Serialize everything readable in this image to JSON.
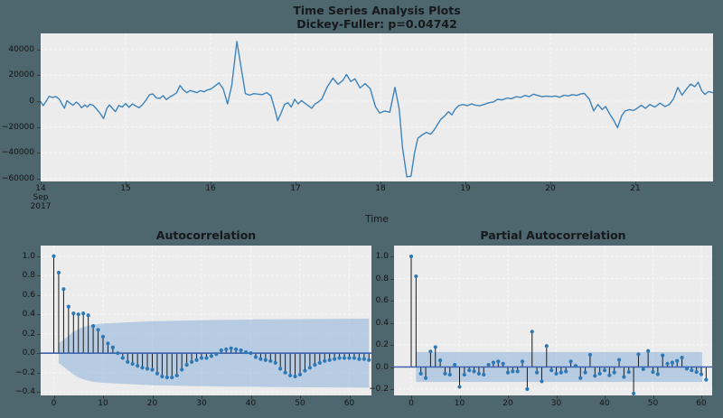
{
  "page": {
    "background": "#4e666e",
    "axes_background": "#ececec",
    "grid_color": "#f7f7f7",
    "text_color": "#141414"
  },
  "colors": {
    "line": "#3d84bd",
    "marker": "#2e79b5",
    "stem": "#1a1a1a",
    "zero_line": "#3e63ae",
    "band": "rgba(125,170,215,0.48)"
  },
  "chart_data": [
    {
      "type": "line",
      "name": "time-series",
      "title": "Time Series Analysis Plots",
      "subtitle": "Dickey-Fuller: p=0.04742",
      "xlabel": "Time",
      "x_tick_labels": [
        "14",
        "15",
        "16",
        "17",
        "18",
        "19",
        "20",
        "21"
      ],
      "x_first_tick_extra": [
        "Sep",
        "2017"
      ],
      "y_tick_labels": [
        "40000",
        "20000",
        "0",
        "−20000",
        "−40000",
        "−60000"
      ],
      "y_tick_values": [
        40000,
        20000,
        0,
        -20000,
        -40000,
        -60000
      ],
      "ylim": [
        -62000,
        52500
      ],
      "xlim_days": [
        0,
        7.91
      ],
      "grid": true,
      "points": [
        [
          0.0,
          -500
        ],
        [
          0.03,
          -3500
        ],
        [
          0.07,
          500
        ],
        [
          0.1,
          3800
        ],
        [
          0.14,
          2800
        ],
        [
          0.18,
          3600
        ],
        [
          0.22,
          1500
        ],
        [
          0.25,
          -2200
        ],
        [
          0.28,
          -5500
        ],
        [
          0.31,
          300
        ],
        [
          0.35,
          -1800
        ],
        [
          0.38,
          -3200
        ],
        [
          0.42,
          -800
        ],
        [
          0.45,
          -2400
        ],
        [
          0.48,
          -5200
        ],
        [
          0.52,
          -3000
        ],
        [
          0.55,
          -4600
        ],
        [
          0.58,
          -2400
        ],
        [
          0.62,
          -3400
        ],
        [
          0.66,
          -6200
        ],
        [
          0.7,
          -9500
        ],
        [
          0.74,
          -13500
        ],
        [
          0.78,
          -5500
        ],
        [
          0.81,
          -3000
        ],
        [
          0.85,
          -6000
        ],
        [
          0.88,
          -8200
        ],
        [
          0.92,
          -3400
        ],
        [
          0.96,
          -4600
        ],
        [
          1.0,
          -1800
        ],
        [
          1.04,
          -4800
        ],
        [
          1.08,
          -2200
        ],
        [
          1.12,
          -3800
        ],
        [
          1.16,
          -5200
        ],
        [
          1.2,
          -2600
        ],
        [
          1.24,
          800
        ],
        [
          1.28,
          4800
        ],
        [
          1.32,
          5600
        ],
        [
          1.36,
          2600
        ],
        [
          1.4,
          2000
        ],
        [
          1.44,
          4200
        ],
        [
          1.48,
          1200
        ],
        [
          1.52,
          3200
        ],
        [
          1.56,
          4600
        ],
        [
          1.6,
          6400
        ],
        [
          1.64,
          12200
        ],
        [
          1.68,
          8600
        ],
        [
          1.72,
          6600
        ],
        [
          1.76,
          8200
        ],
        [
          1.8,
          7400
        ],
        [
          1.84,
          6600
        ],
        [
          1.88,
          8200
        ],
        [
          1.92,
          7200
        ],
        [
          1.96,
          8600
        ],
        [
          2.0,
          9200
        ],
        [
          2.05,
          11600
        ],
        [
          2.1,
          14200
        ],
        [
          2.15,
          9200
        ],
        [
          2.2,
          -2200
        ],
        [
          2.25,
          12500
        ],
        [
          2.31,
          46200
        ],
        [
          2.36,
          26000
        ],
        [
          2.41,
          5800
        ],
        [
          2.46,
          4600
        ],
        [
          2.51,
          5800
        ],
        [
          2.56,
          5400
        ],
        [
          2.61,
          5000
        ],
        [
          2.66,
          6600
        ],
        [
          2.71,
          4200
        ],
        [
          2.75,
          -4800
        ],
        [
          2.79,
          -15200
        ],
        [
          2.83,
          -9200
        ],
        [
          2.87,
          -2600
        ],
        [
          2.91,
          -1200
        ],
        [
          2.95,
          -4600
        ],
        [
          2.99,
          1400
        ],
        [
          3.03,
          -2200
        ],
        [
          3.07,
          400
        ],
        [
          3.11,
          -1600
        ],
        [
          3.15,
          -3600
        ],
        [
          3.19,
          -5600
        ],
        [
          3.23,
          -2200
        ],
        [
          3.27,
          -600
        ],
        [
          3.31,
          1600
        ],
        [
          3.37,
          10600
        ],
        [
          3.44,
          17800
        ],
        [
          3.5,
          13000
        ],
        [
          3.56,
          16200
        ],
        [
          3.6,
          20600
        ],
        [
          3.65,
          15200
        ],
        [
          3.7,
          17200
        ],
        [
          3.76,
          10200
        ],
        [
          3.82,
          13600
        ],
        [
          3.88,
          9600
        ],
        [
          3.94,
          -4200
        ],
        [
          3.99,
          -9200
        ],
        [
          4.05,
          -7600
        ],
        [
          4.11,
          -8600
        ],
        [
          4.17,
          10600
        ],
        [
          4.22,
          -6000
        ],
        [
          4.26,
          -36000
        ],
        [
          4.31,
          -58600
        ],
        [
          4.36,
          -58200
        ],
        [
          4.4,
          -40500
        ],
        [
          4.44,
          -28600
        ],
        [
          4.49,
          -26200
        ],
        [
          4.54,
          -24200
        ],
        [
          4.59,
          -25600
        ],
        [
          4.63,
          -22600
        ],
        [
          4.67,
          -18200
        ],
        [
          4.71,
          -14200
        ],
        [
          4.76,
          -11200
        ],
        [
          4.8,
          -8200
        ],
        [
          4.84,
          -10600
        ],
        [
          4.88,
          -6200
        ],
        [
          4.92,
          -3600
        ],
        [
          4.97,
          -2600
        ],
        [
          5.02,
          -3600
        ],
        [
          5.07,
          -2200
        ],
        [
          5.12,
          -3200
        ],
        [
          5.17,
          -3600
        ],
        [
          5.22,
          -2600
        ],
        [
          5.28,
          -1200
        ],
        [
          5.33,
          -600
        ],
        [
          5.38,
          1400
        ],
        [
          5.43,
          900
        ],
        [
          5.49,
          2400
        ],
        [
          5.54,
          1900
        ],
        [
          5.6,
          3400
        ],
        [
          5.65,
          2900
        ],
        [
          5.7,
          4400
        ],
        [
          5.75,
          3400
        ],
        [
          5.8,
          5400
        ],
        [
          5.85,
          4400
        ],
        [
          5.9,
          3400
        ],
        [
          5.95,
          3900
        ],
        [
          6.01,
          3400
        ],
        [
          6.06,
          4000
        ],
        [
          6.11,
          3000
        ],
        [
          6.16,
          4600
        ],
        [
          6.21,
          4000
        ],
        [
          6.26,
          5000
        ],
        [
          6.31,
          4400
        ],
        [
          6.36,
          5600
        ],
        [
          6.4,
          6000
        ],
        [
          6.46,
          1400
        ],
        [
          6.51,
          -7600
        ],
        [
          6.56,
          -2600
        ],
        [
          6.61,
          -6600
        ],
        [
          6.65,
          -4200
        ],
        [
          6.7,
          -10200
        ],
        [
          6.74,
          -14200
        ],
        [
          6.79,
          -20600
        ],
        [
          6.84,
          -11200
        ],
        [
          6.88,
          -7600
        ],
        [
          6.93,
          -6600
        ],
        [
          6.98,
          -7200
        ],
        [
          7.02,
          -5600
        ],
        [
          7.07,
          -3200
        ],
        [
          7.12,
          -5600
        ],
        [
          7.17,
          -2600
        ],
        [
          7.23,
          -4600
        ],
        [
          7.29,
          -1600
        ],
        [
          7.35,
          -4200
        ],
        [
          7.4,
          -2600
        ],
        [
          7.45,
          1800
        ],
        [
          7.5,
          10600
        ],
        [
          7.55,
          4600
        ],
        [
          7.6,
          9200
        ],
        [
          7.65,
          13200
        ],
        [
          7.7,
          11200
        ],
        [
          7.74,
          14600
        ],
        [
          7.78,
          8200
        ],
        [
          7.82,
          5200
        ],
        [
          7.86,
          7400
        ],
        [
          7.91,
          6600
        ]
      ]
    },
    {
      "type": "stem",
      "name": "acf",
      "title": "Autocorrelation",
      "x_tick_values": [
        0,
        10,
        20,
        30,
        40,
        50,
        60
      ],
      "y_tick_labels": [
        "1.0",
        "0.8",
        "0.6",
        "0.4",
        "0.2",
        "0.0",
        "−0.2",
        "−0.4"
      ],
      "y_tick_values": [
        1.0,
        0.8,
        0.6,
        0.4,
        0.2,
        0.0,
        -0.2,
        -0.4
      ],
      "ylim": [
        -0.44,
        1.11
      ],
      "grid": true,
      "values": [
        1.0,
        0.83,
        0.66,
        0.48,
        0.41,
        0.4,
        0.41,
        0.39,
        0.28,
        0.24,
        0.17,
        0.1,
        0.06,
        0.0,
        -0.05,
        -0.09,
        -0.11,
        -0.13,
        -0.15,
        -0.16,
        -0.17,
        -0.21,
        -0.24,
        -0.25,
        -0.25,
        -0.23,
        -0.17,
        -0.12,
        -0.09,
        -0.07,
        -0.05,
        -0.05,
        -0.03,
        -0.01,
        0.03,
        0.04,
        0.05,
        0.04,
        0.03,
        0.01,
        0.0,
        -0.04,
        -0.06,
        -0.07,
        -0.08,
        -0.1,
        -0.16,
        -0.2,
        -0.23,
        -0.24,
        -0.22,
        -0.18,
        -0.15,
        -0.12,
        -0.1,
        -0.08,
        -0.07,
        -0.06,
        -0.05,
        -0.05,
        -0.05,
        -0.05,
        -0.06,
        -0.06,
        -0.07
      ],
      "band_half_widths": [
        [
          1,
          0.1
        ],
        [
          2,
          0.14
        ],
        [
          3,
          0.18
        ],
        [
          4,
          0.22
        ],
        [
          5,
          0.25
        ],
        [
          6,
          0.27
        ],
        [
          8,
          0.295
        ],
        [
          10,
          0.305
        ],
        [
          14,
          0.315
        ],
        [
          20,
          0.33
        ],
        [
          30,
          0.34
        ],
        [
          45,
          0.35
        ],
        [
          64,
          0.355
        ]
      ]
    },
    {
      "type": "stem",
      "name": "pacf",
      "title": "Partial Autocorrelation",
      "x_tick_values": [
        0,
        10,
        20,
        30,
        40,
        50,
        60
      ],
      "y_tick_labels": [
        "1.0",
        "0.8",
        "0.6",
        "0.4",
        "0.2",
        "0.0",
        "−0.2"
      ],
      "y_tick_values": [
        1.0,
        0.8,
        0.6,
        0.4,
        0.2,
        0.0,
        -0.2
      ],
      "ylim": [
        -0.26,
        1.1
      ],
      "grid": true,
      "values": [
        1.0,
        0.82,
        -0.06,
        -0.1,
        0.14,
        0.18,
        0.06,
        -0.06,
        -0.07,
        0.02,
        -0.18,
        -0.07,
        -0.03,
        -0.04,
        -0.06,
        -0.07,
        0.02,
        0.04,
        0.05,
        0.03,
        -0.05,
        -0.04,
        -0.04,
        0.05,
        -0.2,
        0.32,
        -0.05,
        -0.13,
        0.19,
        -0.03,
        -0.06,
        -0.05,
        -0.04,
        0.05,
        0.01,
        -0.1,
        -0.05,
        0.11,
        -0.08,
        -0.06,
        -0.03,
        -0.075,
        -0.05,
        0.065,
        -0.09,
        -0.045,
        -0.24,
        0.115,
        -0.02,
        0.145,
        -0.045,
        -0.065,
        0.105,
        0.03,
        0.04,
        0.055,
        0.085,
        -0.015,
        -0.03,
        -0.045,
        -0.065,
        -0.115
      ],
      "band_constant_half_width": 0.135,
      "band_lag_range": [
        1.0,
        60.2
      ]
    }
  ]
}
